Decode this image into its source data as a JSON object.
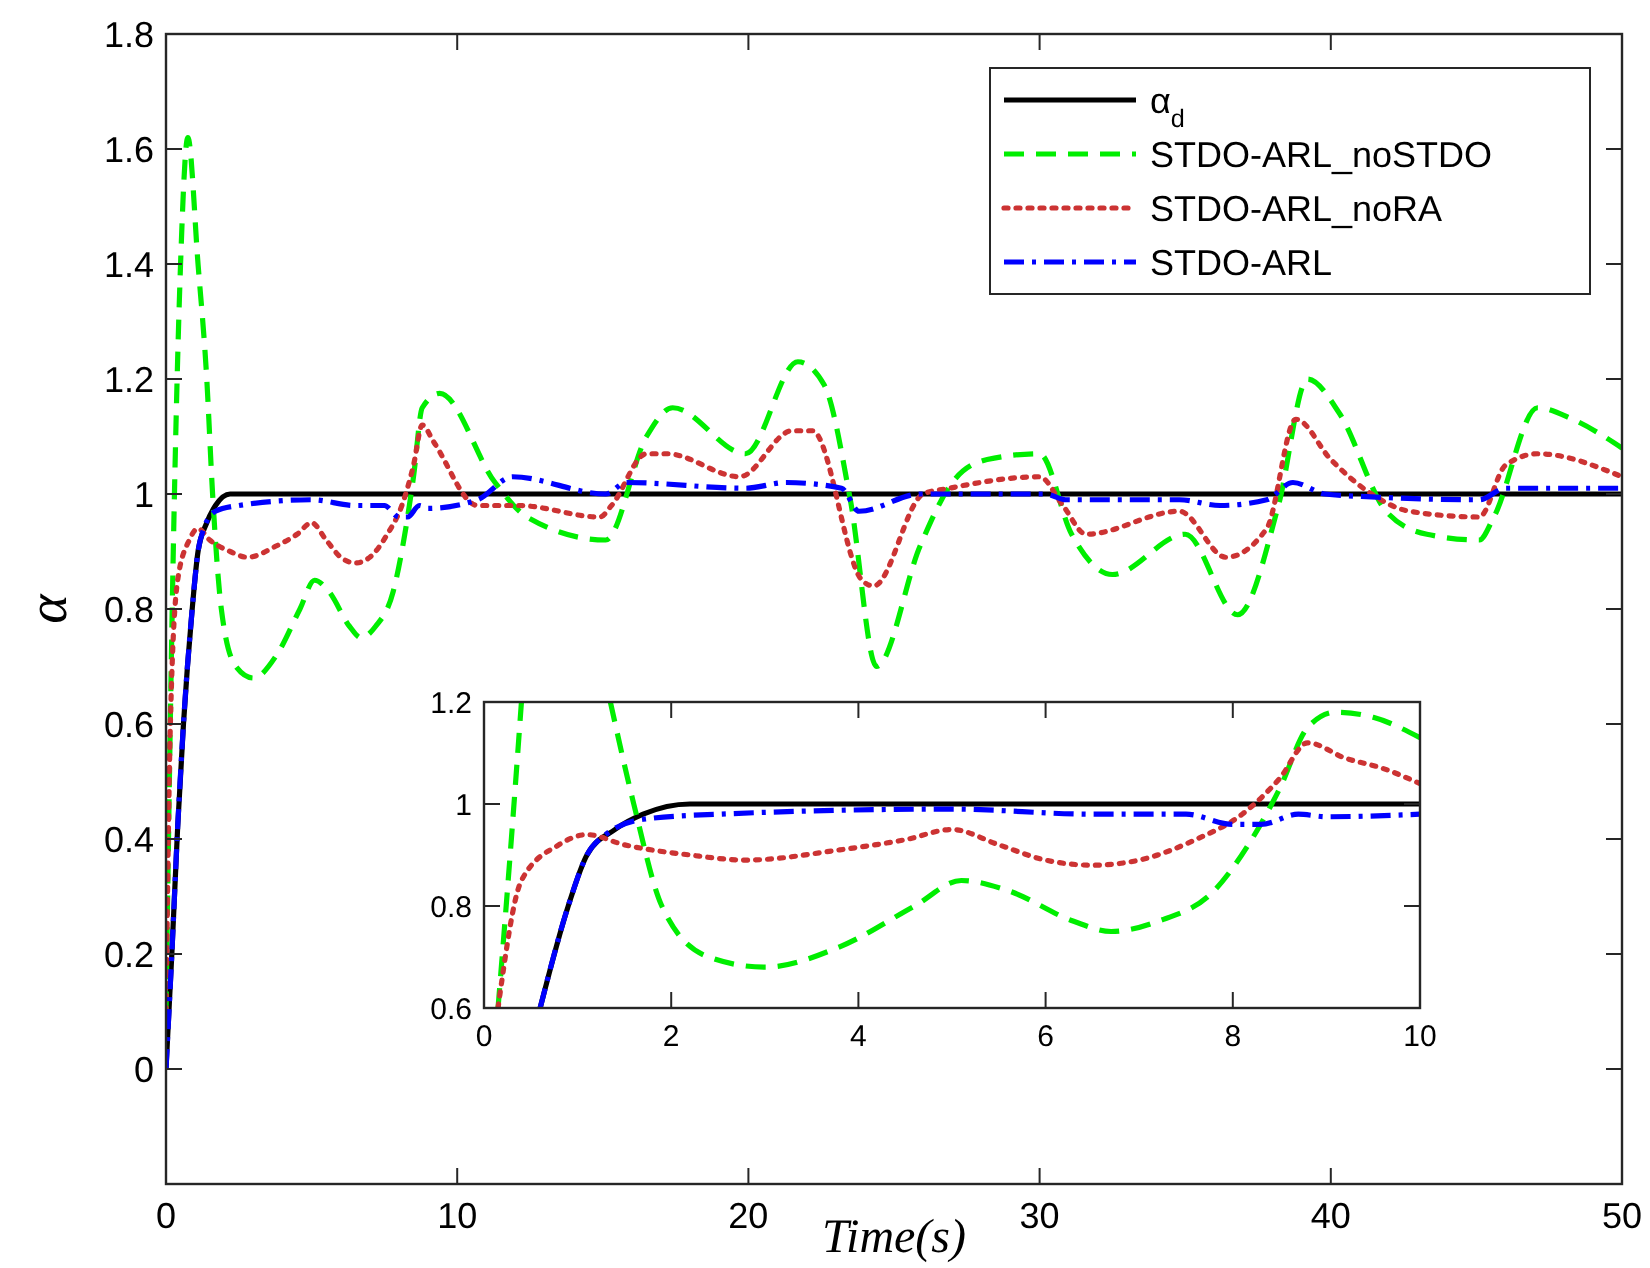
{
  "chart_data": [
    {
      "type": "line",
      "xlabel": "Time(s)",
      "ylabel": "α",
      "xlim": [
        0,
        50
      ],
      "ylim": [
        -0.2,
        1.8
      ],
      "xticks": [
        0,
        10,
        20,
        30,
        40,
        50
      ],
      "yticks": [
        0,
        0.2,
        0.4,
        0.6,
        0.8,
        1,
        1.2,
        1.4,
        1.6,
        1.8
      ],
      "grid": false,
      "legend": "top right",
      "marker": "none",
      "series": [
        {
          "name": "α$_{d}$",
          "color": "#000000",
          "line_style": "solid",
          "x": [
            0,
            0.2,
            0.4,
            0.6,
            0.9,
            1.1,
            1.4,
            1.7,
            2.2,
            50
          ],
          "values": [
            0,
            0.2,
            0.42,
            0.6,
            0.8,
            0.9,
            0.95,
            0.98,
            1.0,
            1.0
          ]
        },
        {
          "name": "STDO-ARL_noSTDO",
          "color": "#00ee00",
          "line_style": "dashed",
          "x": [
            0,
            0.25,
            0.5,
            0.75,
            1.1,
            1.4,
            1.6,
            1.9,
            2.4,
            3.0,
            3.8,
            4.6,
            5.1,
            5.6,
            6.3,
            6.7,
            7.2,
            7.8,
            8.2,
            8.5,
            8.8,
            9.4,
            11.3,
            12.4,
            15.1,
            16.5,
            17.4,
            19.9,
            21.7,
            22.6,
            23.5,
            24.4,
            25.9,
            27.0,
            28.2,
            30.0,
            31.1,
            32.5,
            35.0,
            36.8,
            38.2,
            39.2,
            40.3,
            41.9,
            43.3,
            45.1,
            45.6,
            47.1,
            48.3,
            50
          ],
          "values": [
            0.1,
            0.9,
            1.4,
            1.62,
            1.4,
            1.2,
            1.0,
            0.8,
            0.7,
            0.68,
            0.72,
            0.8,
            0.85,
            0.83,
            0.77,
            0.75,
            0.77,
            0.83,
            0.93,
            1.03,
            1.15,
            1.175,
            1.02,
            0.96,
            0.92,
            1.1,
            1.15,
            1.07,
            1.23,
            1.19,
            0.99,
            0.7,
            0.91,
            1.02,
            1.06,
            1.07,
            0.93,
            0.86,
            0.93,
            0.79,
            0.98,
            1.2,
            1.14,
            0.97,
            0.93,
            0.92,
            0.96,
            1.15,
            1.13,
            1.08
          ]
        },
        {
          "name": "STDO-ARL_noRA",
          "color": "#cc3333",
          "line_style": "dotted",
          "x": [
            0,
            0.15,
            0.4,
            0.8,
            1.1,
            1.5,
            2.2,
            2.8,
            3.8,
            4.5,
            5.0,
            5.5,
            6.0,
            6.5,
            7.0,
            7.6,
            8.1,
            8.5,
            8.8,
            9.2,
            10.7,
            12.1,
            14.9,
            15.3,
            16.5,
            17.2,
            19.7,
            21.5,
            22.2,
            23.9,
            24.3,
            26.0,
            26.9,
            30.0,
            30.8,
            31.6,
            34.8,
            36.4,
            37.8,
            38.8,
            40.0,
            41.4,
            42.7,
            45.1,
            46.0,
            47.1,
            50
          ],
          "values": [
            0.1,
            0.6,
            0.85,
            0.92,
            0.94,
            0.92,
            0.9,
            0.89,
            0.91,
            0.93,
            0.95,
            0.92,
            0.89,
            0.88,
            0.89,
            0.93,
            0.98,
            1.05,
            1.12,
            1.09,
            0.98,
            0.98,
            0.96,
            0.98,
            1.07,
            1.07,
            1.03,
            1.11,
            1.11,
            0.85,
            0.84,
            1.0,
            1.01,
            1.03,
            0.98,
            0.93,
            0.97,
            0.89,
            0.94,
            1.13,
            1.06,
            1.0,
            0.97,
            0.96,
            1.05,
            1.07,
            1.03
          ]
        },
        {
          "name": "STDO-ARL",
          "color": "#0000ff",
          "line_style": "dashdot",
          "x": [
            0,
            0.2,
            0.4,
            0.6,
            0.9,
            1.1,
            1.3,
            1.7,
            2.5,
            5.0,
            6.5,
            7.5,
            8.0,
            8.3,
            8.7,
            9.0,
            10.7,
            11.9,
            15.1,
            15.8,
            19.9,
            21.3,
            23.2,
            23.8,
            25.9,
            30.2,
            30.9,
            34.8,
            36.2,
            37.8,
            38.7,
            39.8,
            41.4,
            45.1,
            46.0,
            50
          ],
          "values": [
            0,
            0.2,
            0.42,
            0.6,
            0.8,
            0.9,
            0.94,
            0.97,
            0.98,
            0.99,
            0.98,
            0.98,
            0.96,
            0.96,
            0.98,
            0.975,
            0.99,
            1.03,
            1.0,
            1.02,
            1.01,
            1.02,
            1.01,
            0.97,
            1.0,
            1.0,
            0.99,
            0.99,
            0.98,
            0.99,
            1.02,
            1.0,
            0.995,
            0.99,
            1.01,
            1.01
          ]
        }
      ]
    },
    {
      "type": "line",
      "xlim": [
        0,
        10
      ],
      "ylim": [
        0.6,
        1.2
      ],
      "xticks": [
        0,
        2,
        4,
        6,
        8,
        10
      ],
      "yticks": [
        0.6,
        0.8,
        1,
        1.2
      ],
      "grid": false,
      "legend": false,
      "marker": "none",
      "series": [
        {
          "color": "#000000",
          "line_style": "solid",
          "x": [
            0.6,
            0.9,
            1.1,
            1.4,
            1.7,
            2.2,
            10
          ],
          "values": [
            0.6,
            0.8,
            0.9,
            0.95,
            0.98,
            1.0,
            1.0
          ]
        },
        {
          "color": "#00ee00",
          "line_style": "dashed",
          "x": [
            0.15,
            0.3,
            0.4,
            0.8,
            1.35,
            1.6,
            1.9,
            2.4,
            3.0,
            3.8,
            4.6,
            5.1,
            5.6,
            6.3,
            6.7,
            7.2,
            7.8,
            8.2,
            8.5,
            8.8,
            9.1,
            9.5,
            10
          ],
          "values": [
            0.6,
            0.95,
            1.2,
            null,
            1.2,
            1.0,
            0.8,
            0.7,
            0.68,
            0.72,
            0.8,
            0.85,
            0.83,
            0.77,
            0.75,
            0.77,
            0.83,
            0.93,
            1.03,
            1.15,
            1.18,
            1.17,
            1.13
          ]
        },
        {
          "color": "#cc3333",
          "line_style": "dotted",
          "x": [
            0.15,
            0.4,
            0.8,
            1.1,
            1.5,
            2.2,
            2.8,
            3.8,
            4.5,
            5.0,
            5.5,
            6.0,
            6.5,
            7.0,
            7.6,
            8.1,
            8.5,
            8.8,
            9.2,
            9.6,
            10
          ],
          "values": [
            0.6,
            0.85,
            0.92,
            0.94,
            0.92,
            0.9,
            0.89,
            0.91,
            0.93,
            0.95,
            0.92,
            0.89,
            0.88,
            0.89,
            0.93,
            0.98,
            1.05,
            1.12,
            1.09,
            1.07,
            1.04
          ]
        },
        {
          "color": "#0000ff",
          "line_style": "dashdot",
          "x": [
            0.6,
            0.9,
            1.1,
            1.3,
            1.7,
            2.5,
            5.0,
            6.5,
            7.5,
            8.0,
            8.3,
            8.7,
            9.0,
            10
          ],
          "values": [
            0.6,
            0.8,
            0.9,
            0.94,
            0.97,
            0.98,
            0.99,
            0.98,
            0.98,
            0.96,
            0.96,
            0.98,
            0.975,
            0.98
          ]
        }
      ]
    }
  ]
}
